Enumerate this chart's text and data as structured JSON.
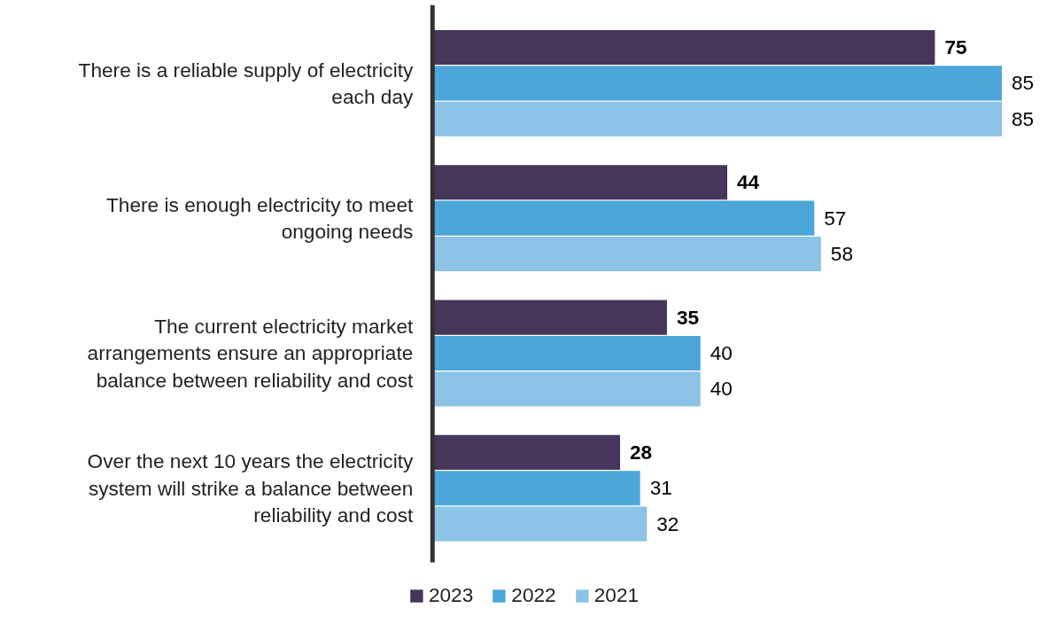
{
  "chart_data": {
    "type": "bar",
    "orientation": "horizontal",
    "data_labels": true,
    "legend": "bottom",
    "grid": false,
    "categories": [
      "There is a reliable supply of electricity each day",
      "There is enough electricity to meet ongoing needs",
      "The current electricity market arrangements ensure an appropriate balance between reliability and cost",
      "Over the next 10 years the electricity system will strike a balance between reliability and cost"
    ],
    "series": [
      {
        "name": "2023",
        "color": "#46365a",
        "values": [
          75,
          44,
          35,
          28
        ]
      },
      {
        "name": "2022",
        "color": "#4da6d9",
        "values": [
          85,
          57,
          40,
          31
        ]
      },
      {
        "name": "2021",
        "color": "#8cc3e6",
        "values": [
          85,
          58,
          40,
          32
        ]
      }
    ]
  }
}
